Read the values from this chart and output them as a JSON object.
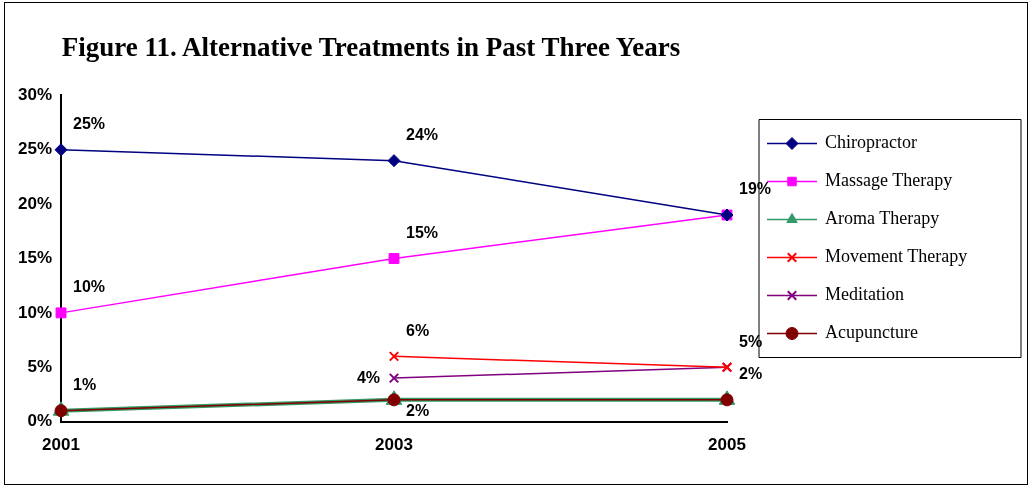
{
  "chart_data": {
    "type": "line",
    "title": "Figure 11. Alternative Treatments in Past Three Years",
    "categories": [
      "2001",
      "2003",
      "2005"
    ],
    "series": [
      {
        "name": "Chiropractor",
        "color": "#000080",
        "marker": "diamond",
        "values": [
          25,
          24,
          19
        ],
        "value_labels": [
          "25%",
          "24%",
          "19%"
        ]
      },
      {
        "name": "Massage Therapy",
        "color": "#ff00ff",
        "marker": "square",
        "values": [
          10,
          15,
          19
        ],
        "value_labels": [
          "10%",
          "15%",
          null
        ]
      },
      {
        "name": "Aroma Therapy",
        "color": "#339966",
        "marker": "triangle",
        "values": [
          1,
          2,
          2
        ],
        "value_labels": [
          null,
          "2%",
          "2%"
        ]
      },
      {
        "name": "Movement Therapy",
        "color": "#ff0000",
        "marker": "cross",
        "values": [
          null,
          6,
          5
        ],
        "value_labels": [
          null,
          "6%",
          null
        ]
      },
      {
        "name": "Meditation",
        "color": "#800080",
        "marker": "cross",
        "values": [
          null,
          4,
          5
        ],
        "value_labels": [
          null,
          "4%",
          "5%"
        ]
      },
      {
        "name": "Acupuncture",
        "color": "#800000",
        "marker": "circle",
        "values": [
          1,
          2,
          2
        ],
        "value_labels": [
          "1%",
          null,
          null
        ]
      }
    ],
    "ylim": [
      0,
      30
    ],
    "yticks": [
      {
        "value": 0,
        "label": "0%"
      },
      {
        "value": 5,
        "label": "5%"
      },
      {
        "value": 10,
        "label": "10%"
      },
      {
        "value": 15,
        "label": "15%"
      },
      {
        "value": 20,
        "label": "20%"
      },
      {
        "value": 25,
        "label": "25%"
      },
      {
        "value": 30,
        "label": "30%"
      }
    ],
    "grid": false,
    "legend": "right"
  }
}
